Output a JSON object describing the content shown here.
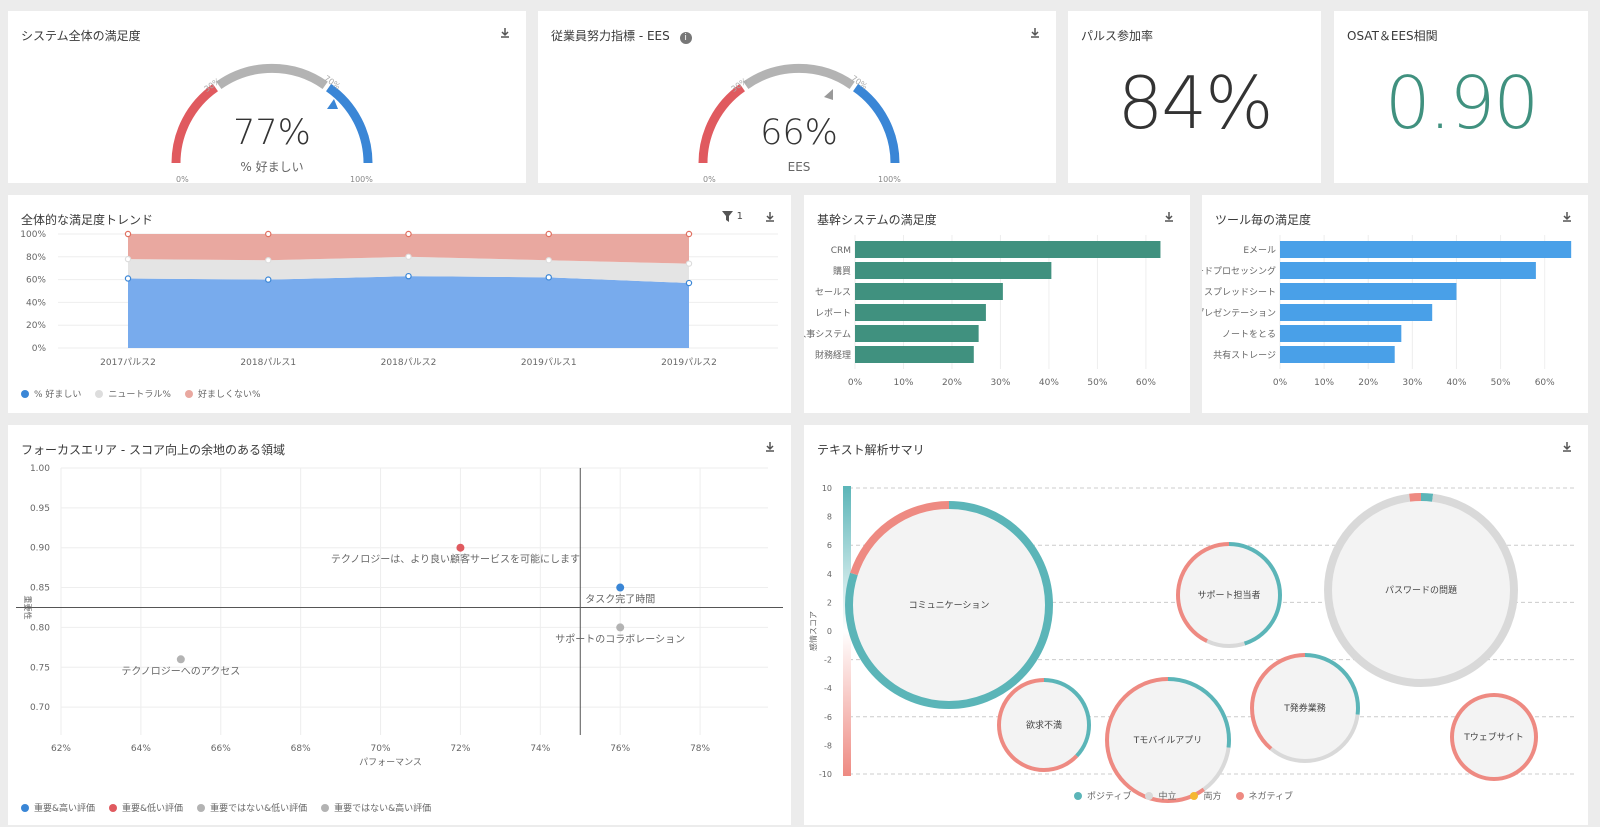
{
  "cards": {
    "osat": {
      "title": "システム全体の満足度",
      "value": "77%",
      "label": "% 好ましい",
      "t0": "0%",
      "t30": "30%",
      "t70": "70%",
      "t100": "100%",
      "marker": 77
    },
    "ees": {
      "title": "従業員努力指標 - EES",
      "value": "66%",
      "label": "EES",
      "t0": "0%",
      "t30": "30%",
      "t70": "70%",
      "t100": "100%",
      "marker": 66
    },
    "pulse": {
      "title": "パルス参加率",
      "value": "84%"
    },
    "corr": {
      "title": "OSAT＆EES相関",
      "value": "0.90"
    },
    "trend": {
      "title": "全体的な満足度トレンド",
      "filter_count": "1"
    },
    "core": {
      "title": "基幹システムの満足度"
    },
    "tool": {
      "title": "ツール毎の満足度"
    },
    "focus": {
      "title": "フォーカスエリア - スコア向上の余地のある領域"
    },
    "text": {
      "title": "テキスト解析サマリ"
    }
  },
  "colors": {
    "red": "#e05a5f",
    "grey": "#b3b3b3",
    "blue": "#3a86d6",
    "teal": "#40917f",
    "sky": "#49a0e8",
    "pos": "#5bb5b8",
    "neg": "#ee8a82",
    "neutral": "#d9d9d9",
    "both": "#f5b731"
  },
  "chart_data": [
    {
      "type": "area",
      "categories": [
        "2017パルス2",
        "2018パルス1",
        "2018パルス2",
        "2019パルス1",
        "2019パルス2"
      ],
      "yticks": [
        "0%",
        "20%",
        "40%",
        "60%",
        "80%",
        "100%"
      ],
      "ylim": [
        0,
        100
      ],
      "series": [
        {
          "name": "% 好ましい",
          "values": [
            61,
            60,
            63,
            62,
            57
          ],
          "color": "#78abed"
        },
        {
          "name": "ニュートラル%",
          "values": [
            17,
            17,
            17,
            15,
            17
          ],
          "color": "#e4e4e4"
        },
        {
          "name": "好ましくない%",
          "values": [
            22,
            23,
            20,
            23,
            26
          ],
          "color": "#e9a8a0"
        }
      ]
    },
    {
      "type": "bar",
      "categories": [
        "CRM",
        "購買",
        "セールス",
        "レポート",
        "人事システム",
        "財務経理"
      ],
      "values": [
        63,
        40.5,
        30.5,
        27,
        25.5,
        24.5
      ],
      "xticks": [
        "0%",
        "10%",
        "20%",
        "30%",
        "40%",
        "50%",
        "60%"
      ],
      "xlim": [
        0,
        66
      ]
    },
    {
      "type": "bar",
      "categories": [
        "Eメール",
        "ワードプロセッシング",
        "スプレッドシート",
        "プレゼンテーション",
        "ノートをとる",
        "共有ストレージ"
      ],
      "values": [
        66,
        58,
        40,
        34.5,
        27.5,
        26
      ],
      "xticks": [
        "0%",
        "10%",
        "20%",
        "30%",
        "40%",
        "50%",
        "60%"
      ],
      "xlim": [
        0,
        68
      ]
    },
    {
      "type": "scatter",
      "xlabel": "パフォーマンス",
      "ylabel": "重要性",
      "xticks": [
        "62%",
        "64%",
        "66%",
        "68%",
        "70%",
        "72%",
        "74%",
        "76%",
        "78%"
      ],
      "yticks": [
        "0.70",
        "0.75",
        "0.80",
        "0.85",
        "0.90",
        "0.95",
        "1.00"
      ],
      "xlim": [
        62,
        79.7
      ],
      "ylim": [
        0.665,
        1.0
      ],
      "x_ref": 75,
      "y_ref": 0.825,
      "points": [
        {
          "label": "テクノロジーは、より良い顧客サービスを可能にします",
          "x": 72,
          "y": 0.9,
          "color": "#e05a5f"
        },
        {
          "label": "タスク完了時間",
          "x": 76,
          "y": 0.85,
          "color": "#3a86d6"
        },
        {
          "label": "サポートのコラボレーション",
          "x": 76,
          "y": 0.8,
          "color": "#b3b3b3"
        },
        {
          "label": "テクノロジーへのアクセス",
          "x": 65,
          "y": 0.76,
          "color": "#b3b3b3"
        }
      ],
      "legend": [
        {
          "name": "重要&高い評価",
          "color": "#3a86d6"
        },
        {
          "name": "重要&低い評価",
          "color": "#e05a5f"
        },
        {
          "name": "重要ではない&低い評価",
          "color": "#b3b3b3"
        },
        {
          "name": "重要ではない&高い評価",
          "color": "#b3b3b3"
        }
      ]
    },
    {
      "type": "scatter",
      "ylabel": "感情スコア",
      "yticks": [
        "10",
        "8",
        "6",
        "4",
        "2",
        "0",
        "-2",
        "-4",
        "-6",
        "-8",
        "-10"
      ],
      "ylim": [
        -10,
        10
      ],
      "bubbles": [
        {
          "label": "コミュニケーション",
          "y": 0,
          "size": 100,
          "pos": 0.8,
          "neu": 0.0,
          "neg": 0.2
        },
        {
          "label": "サポート担当者",
          "y": 3.5,
          "size": 51,
          "pos": 0.45,
          "neu": 0.12,
          "neg": 0.43
        },
        {
          "label": "パスワードの問題",
          "y": 4,
          "size": 93,
          "pos": 0.02,
          "neu": 0.96,
          "neg": 0.02
        },
        {
          "label": "欲求不満",
          "y": -5.5,
          "size": 45,
          "pos": 0.37,
          "neu": 0.0,
          "neg": 0.63
        },
        {
          "label": "Tモバイルアプリ",
          "y": -5.7,
          "size": 61,
          "pos": 0.27,
          "neu": 0.13,
          "neg": 0.6
        },
        {
          "label": "T発券業務",
          "y": -4.9,
          "size": 53,
          "pos": 0.27,
          "neu": 0.34,
          "neg": 0.39
        },
        {
          "label": "Tウェブサイト",
          "y": -5.2,
          "size": 42,
          "pos": 0.0,
          "neu": 0.0,
          "neg": 1.0
        }
      ],
      "legend": [
        {
          "name": "ポジティブ",
          "color": "#5bb5b8"
        },
        {
          "name": "中立",
          "color": "#d9d9d9"
        },
        {
          "name": "両方",
          "color": "#f5b731"
        },
        {
          "name": "ネガティブ",
          "color": "#ee8a82"
        }
      ]
    }
  ]
}
